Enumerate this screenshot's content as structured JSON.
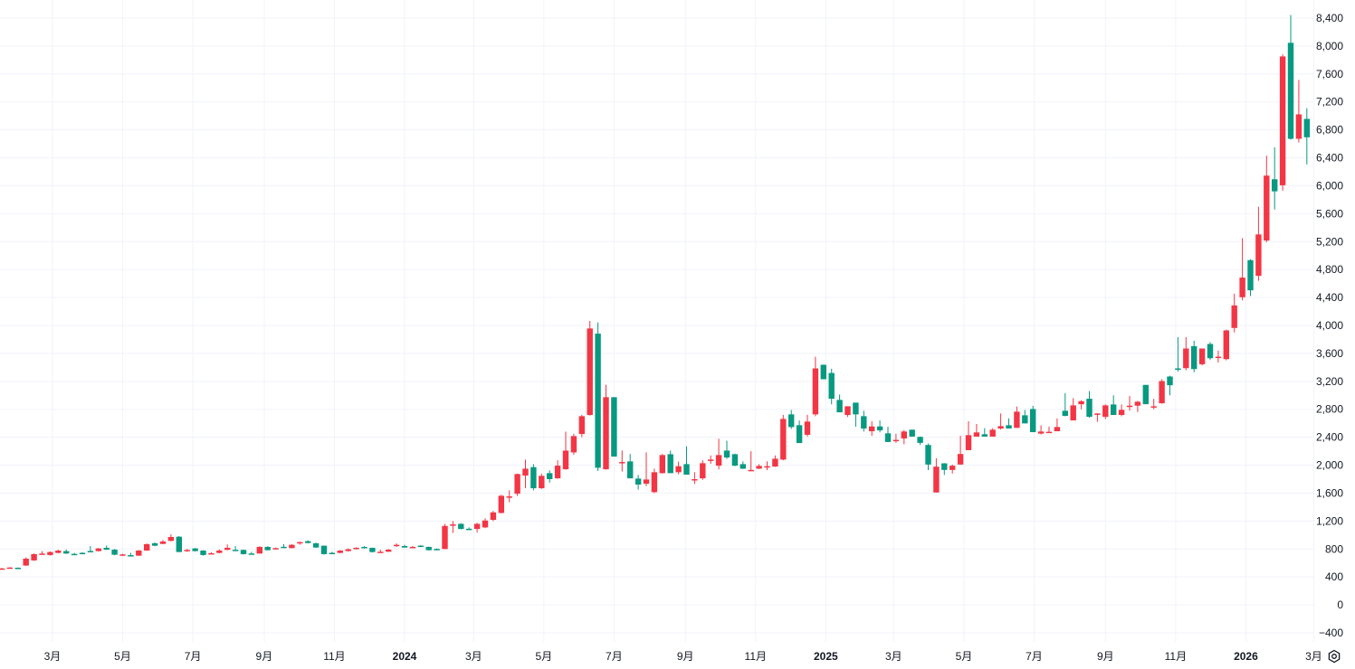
{
  "chart_data": {
    "type": "candlestick",
    "interval": "weekly",
    "ylim": [
      -400,
      8400
    ],
    "y_ticks": [
      -400,
      0,
      400,
      800,
      1200,
      1600,
      2000,
      2400,
      2800,
      3200,
      3600,
      4000,
      4400,
      4800,
      5200,
      5600,
      6000,
      6400,
      6800,
      7200,
      7600,
      8000,
      8400
    ],
    "y_tick_labels": [
      "−400",
      "0",
      "400",
      "800",
      "1,200",
      "1,600",
      "2,000",
      "2,400",
      "2,800",
      "3,200",
      "3,600",
      "4,000",
      "4,400",
      "4,800",
      "5,200",
      "5,600",
      "6,000",
      "6,400",
      "6,800",
      "7,200",
      "7,600",
      "8,000",
      "8,400"
    ],
    "x_ticks": [
      {
        "label": "3月",
        "date": "2023-03-01",
        "bold": false
      },
      {
        "label": "5月",
        "date": "2023-05-01",
        "bold": false
      },
      {
        "label": "7月",
        "date": "2023-07-01",
        "bold": false
      },
      {
        "label": "9月",
        "date": "2023-09-01",
        "bold": false
      },
      {
        "label": "11月",
        "date": "2023-11-01",
        "bold": false
      },
      {
        "label": "2024",
        "date": "2024-01-01",
        "bold": true
      },
      {
        "label": "3月",
        "date": "2024-03-01",
        "bold": false
      },
      {
        "label": "5月",
        "date": "2024-05-01",
        "bold": false
      },
      {
        "label": "7月",
        "date": "2024-07-01",
        "bold": false
      },
      {
        "label": "9月",
        "date": "2024-09-01",
        "bold": false
      },
      {
        "label": "11月",
        "date": "2024-11-01",
        "bold": false
      },
      {
        "label": "2025",
        "date": "2025-01-01",
        "bold": true
      },
      {
        "label": "3月",
        "date": "2025-03-01",
        "bold": false
      },
      {
        "label": "5月",
        "date": "2025-05-01",
        "bold": false
      },
      {
        "label": "7月",
        "date": "2025-07-01",
        "bold": false
      },
      {
        "label": "9月",
        "date": "2025-09-01",
        "bold": false
      },
      {
        "label": "11月",
        "date": "2025-11-01",
        "bold": false
      },
      {
        "label": "2026",
        "date": "2026-01-01",
        "bold": true
      },
      {
        "label": "3月",
        "date": "2026-03-01",
        "bold": false
      }
    ],
    "grid": true,
    "colors": {
      "up": "#F23645",
      "down": "#089981",
      "grid": "#F0F3FA",
      "text": "#131722"
    },
    "ohlc_fields": [
      "open",
      "high",
      "low",
      "close"
    ],
    "candles": [
      [
        520,
        528,
        512,
        522
      ],
      [
        530,
        540,
        525,
        535
      ],
      [
        532,
        536,
        515,
        528
      ],
      [
        563,
        680,
        560,
        662
      ],
      [
        637,
        735,
        630,
        727
      ],
      [
        730,
        770,
        725,
        735
      ],
      [
        714,
        765,
        705,
        757
      ],
      [
        744,
        790,
        740,
        778
      ],
      [
        770,
        795,
        730,
        735
      ],
      [
        730,
        745,
        720,
        727
      ],
      [
        745,
        755,
        735,
        744
      ],
      [
        772,
        843,
        765,
        770
      ],
      [
        770,
        815,
        765,
        808
      ],
      [
        817,
        850,
        785,
        791
      ],
      [
        791,
        800,
        710,
        718
      ],
      [
        722,
        730,
        715,
        722
      ],
      [
        712,
        745,
        705,
        710
      ],
      [
        705,
        785,
        700,
        778
      ],
      [
        778,
        880,
        775,
        869
      ],
      [
        882,
        895,
        840,
        847
      ],
      [
        873,
        930,
        870,
        907
      ],
      [
        916,
        1010,
        910,
        972
      ],
      [
        976,
        985,
        755,
        757
      ],
      [
        787,
        800,
        760,
        787
      ],
      [
        808,
        815,
        765,
        770
      ],
      [
        778,
        782,
        705,
        714
      ],
      [
        738,
        755,
        735,
        740
      ],
      [
        744,
        795,
        738,
        778
      ],
      [
        787,
        865,
        785,
        817
      ],
      [
        789,
        842,
        786,
        787
      ],
      [
        787,
        792,
        720,
        727
      ],
      [
        736,
        760,
        735,
        735
      ],
      [
        735,
        840,
        733,
        830
      ],
      [
        830,
        840,
        780,
        783
      ],
      [
        812,
        820,
        800,
        813
      ],
      [
        832,
        870,
        828,
        830
      ],
      [
        813,
        870,
        810,
        860
      ],
      [
        886,
        905,
        860,
        899
      ],
      [
        912,
        925,
        880,
        886
      ],
      [
        882,
        890,
        815,
        821
      ],
      [
        847,
        850,
        720,
        727
      ],
      [
        745,
        760,
        725,
        744
      ],
      [
        744,
        785,
        740,
        778
      ],
      [
        770,
        810,
        765,
        796
      ],
      [
        800,
        825,
        795,
        817
      ],
      [
        830,
        840,
        808,
        813
      ],
      [
        817,
        820,
        750,
        757
      ],
      [
        760,
        790,
        758,
        761
      ],
      [
        761,
        800,
        758,
        791
      ],
      [
        858,
        880,
        830,
        860
      ],
      [
        843,
        860,
        818,
        821
      ],
      [
        829,
        845,
        825,
        830
      ],
      [
        848,
        855,
        830,
        847
      ],
      [
        830,
        835,
        780,
        783
      ],
      [
        801,
        810,
        796,
        800
      ],
      [
        800,
        1160,
        800,
        1130
      ],
      [
        1150,
        1200,
        1030,
        1152
      ],
      [
        1160,
        1170,
        1080,
        1087
      ],
      [
        1090,
        1110,
        1075,
        1087
      ],
      [
        1087,
        1175,
        1035,
        1160
      ],
      [
        1109,
        1240,
        1100,
        1208
      ],
      [
        1217,
        1345,
        1200,
        1325
      ],
      [
        1316,
        1575,
        1310,
        1562
      ],
      [
        1550,
        1640,
        1470,
        1553
      ],
      [
        1592,
        1880,
        1560,
        1873
      ],
      [
        1851,
        2080,
        1670,
        1950
      ],
      [
        1972,
        2015,
        1640,
        1670
      ],
      [
        1670,
        1880,
        1660,
        1847
      ],
      [
        1886,
        1925,
        1750,
        1800
      ],
      [
        1812,
        2070,
        1805,
        1993
      ],
      [
        1942,
        2480,
        1935,
        2209
      ],
      [
        2183,
        2450,
        2150,
        2416
      ],
      [
        2447,
        2720,
        2400,
        2701
      ],
      [
        2718,
        4065,
        2710,
        3957
      ],
      [
        3883,
        4043,
        1916,
        1963
      ],
      [
        1942,
        3150,
        1935,
        2973
      ],
      [
        2973,
        2973,
        2123,
        2123
      ],
      [
        2045,
        2210,
        1910,
        2045
      ],
      [
        2054,
        2160,
        1812,
        1812
      ],
      [
        1808,
        1860,
        1650,
        1722
      ],
      [
        1735,
        2183,
        1700,
        1795
      ],
      [
        1614,
        1950,
        1600,
        1899
      ],
      [
        1886,
        2160,
        1880,
        2145
      ],
      [
        2157,
        2210,
        1886,
        1886
      ],
      [
        1899,
        2050,
        1870,
        1985
      ],
      [
        2015,
        2270,
        1864,
        1864
      ],
      [
        1800,
        1900,
        1730,
        1800
      ],
      [
        1812,
        2070,
        1790,
        2028
      ],
      [
        2080,
        2140,
        2020,
        2080
      ],
      [
        1993,
        2378,
        1940,
        2145
      ],
      [
        2209,
        2350,
        2090,
        2110
      ],
      [
        2157,
        2165,
        1985,
        1993
      ],
      [
        2015,
        2055,
        1945,
        1950
      ],
      [
        1929,
        2200,
        1925,
        1932
      ],
      [
        1950,
        2015,
        1945,
        1989
      ],
      [
        1985,
        2055,
        1930,
        1985
      ],
      [
        1980,
        2140,
        1975,
        2093
      ],
      [
        2080,
        2720,
        2070,
        2662
      ],
      [
        2727,
        2790,
        2520,
        2546
      ],
      [
        2572,
        2640,
        2330,
        2317
      ],
      [
        2435,
        2720,
        2410,
        2624
      ],
      [
        2727,
        3553,
        2700,
        3385
      ],
      [
        3437,
        3440,
        3230,
        3230
      ],
      [
        3320,
        3380,
        2870,
        2951
      ],
      [
        2934,
        3010,
        2757,
        2757
      ],
      [
        2718,
        2843,
        2690,
        2843
      ],
      [
        2895,
        2895,
        2550,
        2727
      ],
      [
        2701,
        2780,
        2480,
        2525
      ],
      [
        2486,
        2630,
        2420,
        2555
      ],
      [
        2555,
        2640,
        2470,
        2499
      ],
      [
        2456,
        2550,
        2332,
        2332
      ],
      [
        2362,
        2450,
        2320,
        2362
      ],
      [
        2383,
        2505,
        2300,
        2482
      ],
      [
        2508,
        2508,
        2409,
        2409
      ],
      [
        2405,
        2410,
        2290,
        2319
      ],
      [
        2289,
        2310,
        1930,
        2009
      ],
      [
        1609,
        2100,
        1609,
        1979
      ],
      [
        2026,
        2030,
        1860,
        1932
      ],
      [
        1932,
        2010,
        1880,
        1992
      ],
      [
        2009,
        2420,
        2009,
        2160
      ],
      [
        2215,
        2630,
        2215,
        2430
      ],
      [
        2409,
        2590,
        2409,
        2469
      ],
      [
        2443,
        2530,
        2409,
        2409
      ],
      [
        2409,
        2530,
        2409,
        2508
      ],
      [
        2525,
        2740,
        2510,
        2559
      ],
      [
        2572,
        2670,
        2525,
        2525
      ],
      [
        2534,
        2840,
        2534,
        2766
      ],
      [
        2714,
        2790,
        2598,
        2598
      ],
      [
        2804,
        2850,
        2473,
        2473
      ],
      [
        2452,
        2570,
        2440,
        2482
      ],
      [
        2478,
        2550,
        2470,
        2478
      ],
      [
        2486,
        2670,
        2486,
        2546
      ],
      [
        2779,
        3030,
        2700,
        2706
      ],
      [
        2641,
        2960,
        2641,
        2856
      ],
      [
        2873,
        2930,
        2800,
        2916
      ],
      [
        2951,
        3060,
        2680,
        2693
      ],
      [
        2740,
        2745,
        2620,
        2740
      ],
      [
        2693,
        2870,
        2660,
        2856
      ],
      [
        2869,
        3000,
        2719,
        2719
      ],
      [
        2719,
        2870,
        2700,
        2792
      ],
      [
        2852,
        2990,
        2780,
        2852
      ],
      [
        2852,
        2920,
        2760,
        2908
      ],
      [
        3149,
        3149,
        2873,
        2873
      ],
      [
        2843,
        2950,
        2800,
        2843
      ],
      [
        2886,
        3230,
        2880,
        3204
      ],
      [
        3269,
        3280,
        3000,
        3144
      ],
      [
        3385,
        3834,
        3340,
        3376
      ],
      [
        3389,
        3834,
        3360,
        3670
      ],
      [
        3704,
        3780,
        3330,
        3376
      ],
      [
        3445,
        3670,
        3430,
        3670
      ],
      [
        3735,
        3760,
        3505,
        3531
      ],
      [
        3553,
        3640,
        3470,
        3553
      ],
      [
        3518,
        3940,
        3500,
        3929
      ],
      [
        3964,
        4455,
        3900,
        4287
      ],
      [
        4404,
        5250,
        4360,
        4685
      ],
      [
        4935,
        4950,
        4420,
        4503
      ],
      [
        4711,
        5700,
        4640,
        5303
      ],
      [
        5216,
        6430,
        5190,
        6145
      ],
      [
        6093,
        6550,
        5660,
        5920
      ],
      [
        6007,
        7880,
        5930,
        7851
      ],
      [
        8046,
        8443,
        6660,
        6672
      ],
      [
        6672,
        7514,
        6620,
        7022
      ],
      [
        6957,
        7110,
        6305,
        6694
      ]
    ]
  },
  "toolbar": {
    "settings_icon": "settings-icon"
  }
}
